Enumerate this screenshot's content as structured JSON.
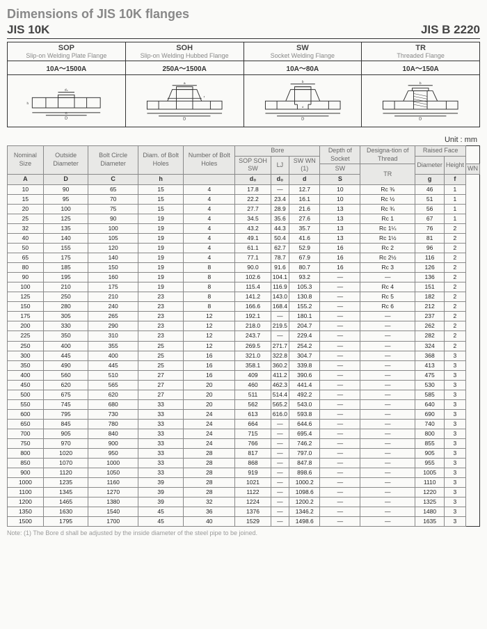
{
  "title": "Dimensions of JIS 10K flanges",
  "subtitle_left": "JIS 10K",
  "subtitle_right": "JIS B 2220",
  "unit_label": "Unit : mm",
  "note": "Note: (1) The Bore d shall be adjusted by the inside diameter of the steel pipe to be joined.",
  "flange_types": [
    {
      "code": "SOP",
      "name": "Slip-on Welding Plate Flange",
      "range": "10A～1500A"
    },
    {
      "code": "SOH",
      "name": "Slip-on Welding Hubbed Flange",
      "range": "250A～1500A"
    },
    {
      "code": "SW",
      "name": "Socket Welding Flange",
      "range": "10A～80A"
    },
    {
      "code": "TR",
      "name": "Threaded Flange",
      "range": "10A～150A"
    }
  ],
  "table": {
    "headers": {
      "nominal_size": "Nominal Size",
      "outside_diameter": "Outside Diameter",
      "bolt_circle": "Bolt Circle Diameter",
      "diam_bolt": "Diam. of Bolt Holes",
      "num_bolt": "Number of Bolt Holes",
      "bore": "Bore",
      "bore_sop": "SOP SOH SW",
      "bore_lj": "LJ",
      "bore_sw": "SW WN (1)",
      "depth_socket": "Depth of Socket",
      "desig_thread": "Designa-tion of Thread",
      "raised_face": "Raised Face",
      "rf_diam": "Diameter",
      "rf_height": "Height",
      "sw_sub": "SW",
      "wn_sub": "WN"
    },
    "symbols": [
      "A",
      "D",
      "C",
      "h",
      "",
      "d₀",
      "d₀",
      "d",
      "S",
      "TR",
      "g",
      "f"
    ],
    "rows": [
      [
        "10",
        "90",
        "65",
        "15",
        "4",
        "17.8",
        "—",
        "12.7",
        "10",
        "Rc ⅜",
        "46",
        "1"
      ],
      [
        "15",
        "95",
        "70",
        "15",
        "4",
        "22.2",
        "23.4",
        "16.1",
        "10",
        "Rc ½",
        "51",
        "1"
      ],
      [
        "20",
        "100",
        "75",
        "15",
        "4",
        "27.7",
        "28.9",
        "21.6",
        "13",
        "Rc ¾",
        "56",
        "1"
      ],
      [
        "25",
        "125",
        "90",
        "19",
        "4",
        "34.5",
        "35.6",
        "27.6",
        "13",
        "Rc 1",
        "67",
        "1"
      ],
      [
        "32",
        "135",
        "100",
        "19",
        "4",
        "43.2",
        "44.3",
        "35.7",
        "13",
        "Rc 1¼",
        "76",
        "2"
      ],
      [
        "40",
        "140",
        "105",
        "19",
        "4",
        "49.1",
        "50.4",
        "41.6",
        "13",
        "Rc 1½",
        "81",
        "2"
      ],
      [
        "50",
        "155",
        "120",
        "19",
        "4",
        "61.1",
        "62.7",
        "52.9",
        "16",
        "Rc 2",
        "96",
        "2"
      ],
      [
        "65",
        "175",
        "140",
        "19",
        "4",
        "77.1",
        "78.7",
        "67.9",
        "16",
        "Rc 2½",
        "116",
        "2"
      ],
      [
        "80",
        "185",
        "150",
        "19",
        "8",
        "90.0",
        "91.6",
        "80.7",
        "16",
        "Rc 3",
        "126",
        "2"
      ],
      [
        "90",
        "195",
        "160",
        "19",
        "8",
        "102.6",
        "104.1",
        "93.2",
        "—",
        "—",
        "136",
        "2"
      ],
      [
        "100",
        "210",
        "175",
        "19",
        "8",
        "115.4",
        "116.9",
        "105.3",
        "—",
        "Rc 4",
        "151",
        "2"
      ],
      [
        "125",
        "250",
        "210",
        "23",
        "8",
        "141.2",
        "143.0",
        "130.8",
        "—",
        "Rc 5",
        "182",
        "2"
      ],
      [
        "150",
        "280",
        "240",
        "23",
        "8",
        "166.6",
        "168.4",
        "155.2",
        "—",
        "Rc 6",
        "212",
        "2"
      ],
      [
        "175",
        "305",
        "265",
        "23",
        "12",
        "192.1",
        "—",
        "180.1",
        "—",
        "—",
        "237",
        "2"
      ],
      [
        "200",
        "330",
        "290",
        "23",
        "12",
        "218.0",
        "219.5",
        "204.7",
        "—",
        "—",
        "262",
        "2"
      ],
      [
        "225",
        "350",
        "310",
        "23",
        "12",
        "243.7",
        "—",
        "229.4",
        "—",
        "—",
        "282",
        "2"
      ],
      [
        "250",
        "400",
        "355",
        "25",
        "12",
        "269.5",
        "271.7",
        "254.2",
        "—",
        "—",
        "324",
        "2"
      ],
      [
        "300",
        "445",
        "400",
        "25",
        "16",
        "321.0",
        "322.8",
        "304.7",
        "—",
        "—",
        "368",
        "3"
      ],
      [
        "350",
        "490",
        "445",
        "25",
        "16",
        "358.1",
        "360.2",
        "339.8",
        "—",
        "—",
        "413",
        "3"
      ],
      [
        "400",
        "560",
        "510",
        "27",
        "16",
        "409",
        "411.2",
        "390.6",
        "—",
        "—",
        "475",
        "3"
      ],
      [
        "450",
        "620",
        "565",
        "27",
        "20",
        "460",
        "462.3",
        "441.4",
        "—",
        "—",
        "530",
        "3"
      ],
      [
        "500",
        "675",
        "620",
        "27",
        "20",
        "511",
        "514.4",
        "492.2",
        "—",
        "—",
        "585",
        "3"
      ],
      [
        "550",
        "745",
        "680",
        "33",
        "20",
        "562",
        "565.2",
        "543.0",
        "—",
        "—",
        "640",
        "3"
      ],
      [
        "600",
        "795",
        "730",
        "33",
        "24",
        "613",
        "616.0",
        "593.8",
        "—",
        "—",
        "690",
        "3"
      ],
      [
        "650",
        "845",
        "780",
        "33",
        "24",
        "664",
        "—",
        "644.6",
        "—",
        "—",
        "740",
        "3"
      ],
      [
        "700",
        "905",
        "840",
        "33",
        "24",
        "715",
        "—",
        "695.4",
        "—",
        "—",
        "800",
        "3"
      ],
      [
        "750",
        "970",
        "900",
        "33",
        "24",
        "766",
        "—",
        "746.2",
        "—",
        "—",
        "855",
        "3"
      ],
      [
        "800",
        "1020",
        "950",
        "33",
        "28",
        "817",
        "—",
        "797.0",
        "—",
        "—",
        "905",
        "3"
      ],
      [
        "850",
        "1070",
        "1000",
        "33",
        "28",
        "868",
        "—",
        "847.8",
        "—",
        "—",
        "955",
        "3"
      ],
      [
        "900",
        "1120",
        "1050",
        "33",
        "28",
        "919",
        "—",
        "898.6",
        "—",
        "—",
        "1005",
        "3"
      ],
      [
        "1000",
        "1235",
        "1160",
        "39",
        "28",
        "1021",
        "—",
        "1000.2",
        "—",
        "—",
        "1110",
        "3"
      ],
      [
        "1100",
        "1345",
        "1270",
        "39",
        "28",
        "1122",
        "—",
        "1098.6",
        "—",
        "—",
        "1220",
        "3"
      ],
      [
        "1200",
        "1465",
        "1380",
        "39",
        "32",
        "1224",
        "—",
        "1200.2",
        "—",
        "—",
        "1325",
        "3"
      ],
      [
        "1350",
        "1630",
        "1540",
        "45",
        "36",
        "1376",
        "—",
        "1346.2",
        "—",
        "—",
        "1480",
        "3"
      ],
      [
        "1500",
        "1795",
        "1700",
        "45",
        "40",
        "1529",
        "—",
        "1498.6",
        "—",
        "—",
        "1635",
        "3"
      ]
    ]
  }
}
